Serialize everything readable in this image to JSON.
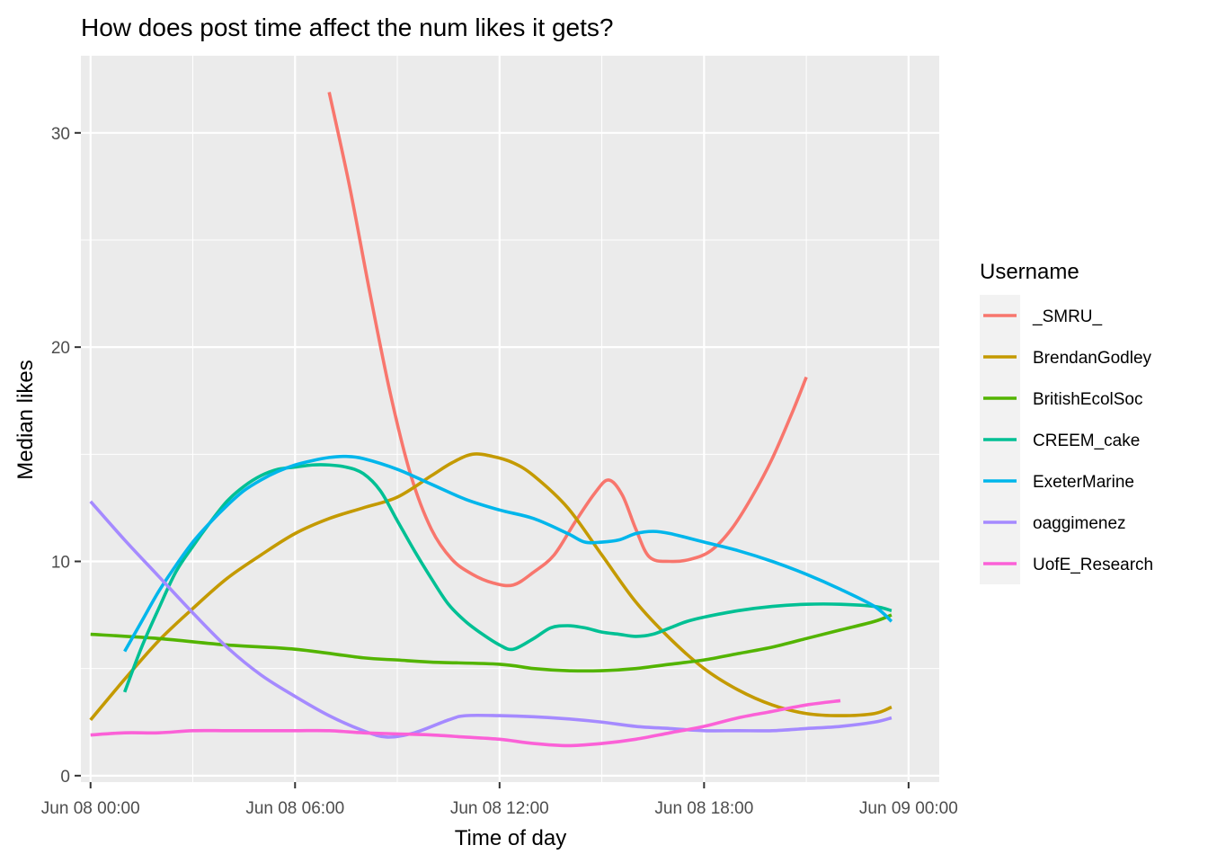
{
  "chart_data": {
    "type": "line",
    "title": "How does post time affect the num likes it gets?",
    "xlabel": "Time of day",
    "ylabel": "Median likes",
    "x_unit": "hours",
    "xlim": [
      "Jun 07 23:43",
      "Jun 09 00:54"
    ],
    "ylim": [
      -0.3,
      33.6
    ],
    "x_ticks": [
      {
        "value": "Jun 08 00:00",
        "label": "Jun 08 00:00"
      },
      {
        "value": "Jun 08 06:00",
        "label": "Jun 08 06:00"
      },
      {
        "value": "Jun 08 12:00",
        "label": "Jun 08 12:00"
      },
      {
        "value": "Jun 08 18:00",
        "label": "Jun 08 18:00"
      },
      {
        "value": "Jun 09 00:00",
        "label": "Jun 09 00:00"
      }
    ],
    "y_ticks": [
      0,
      10,
      20,
      30
    ],
    "grid": true,
    "legend": {
      "title": "Username",
      "position": "right"
    },
    "series": [
      {
        "name": "_SMRU_",
        "color": "#F8766D",
        "points": [
          [
            "Jun 08 07:00",
            31.9
          ],
          [
            "Jun 08 07:36",
            27.5
          ],
          [
            "Jun 08 08:12",
            22.5
          ],
          [
            "Jun 08 08:48",
            17.8
          ],
          [
            "Jun 08 09:24",
            14.0
          ],
          [
            "Jun 08 10:00",
            11.5
          ],
          [
            "Jun 08 10:36",
            10.1
          ],
          [
            "Jun 08 11:12",
            9.4
          ],
          [
            "Jun 08 11:48",
            9.0
          ],
          [
            "Jun 08 12:24",
            8.9
          ],
          [
            "Jun 08 13:00",
            9.5
          ],
          [
            "Jun 08 13:36",
            10.3
          ],
          [
            "Jun 08 14:12",
            11.8
          ],
          [
            "Jun 08 14:48",
            13.2
          ],
          [
            "Jun 08 15:12",
            13.8
          ],
          [
            "Jun 08 15:36",
            13.1
          ],
          [
            "Jun 08 16:00",
            11.5
          ],
          [
            "Jun 08 16:24",
            10.2
          ],
          [
            "Jun 08 17:00",
            10.0
          ],
          [
            "Jun 08 17:36",
            10.1
          ],
          [
            "Jun 08 18:12",
            10.5
          ],
          [
            "Jun 08 18:48",
            11.5
          ],
          [
            "Jun 08 19:24",
            13.0
          ],
          [
            "Jun 08 20:00",
            14.8
          ],
          [
            "Jun 08 20:36",
            17.0
          ],
          [
            "Jun 08 21:00",
            18.6
          ]
        ]
      },
      {
        "name": "BrendanGodley",
        "color": "#C49A00",
        "points": [
          [
            "Jun 08 00:00",
            2.6
          ],
          [
            "Jun 08 01:00",
            4.5
          ],
          [
            "Jun 08 02:00",
            6.3
          ],
          [
            "Jun 08 03:00",
            7.8
          ],
          [
            "Jun 08 04:00",
            9.2
          ],
          [
            "Jun 08 05:00",
            10.3
          ],
          [
            "Jun 08 06:00",
            11.3
          ],
          [
            "Jun 08 07:00",
            12.0
          ],
          [
            "Jun 08 08:00",
            12.5
          ],
          [
            "Jun 08 09:00",
            13.0
          ],
          [
            "Jun 08 10:00",
            14.0
          ],
          [
            "Jun 08 10:36",
            14.6
          ],
          [
            "Jun 08 11:12",
            15.0
          ],
          [
            "Jun 08 11:48",
            14.9
          ],
          [
            "Jun 08 12:24",
            14.6
          ],
          [
            "Jun 08 13:00",
            14.0
          ],
          [
            "Jun 08 14:00",
            12.5
          ],
          [
            "Jun 08 15:00",
            10.3
          ],
          [
            "Jun 08 16:00",
            8.1
          ],
          [
            "Jun 08 17:00",
            6.4
          ],
          [
            "Jun 08 18:00",
            5.0
          ],
          [
            "Jun 08 19:00",
            4.0
          ],
          [
            "Jun 08 20:00",
            3.3
          ],
          [
            "Jun 08 21:00",
            2.9
          ],
          [
            "Jun 08 22:00",
            2.8
          ],
          [
            "Jun 08 23:00",
            2.9
          ],
          [
            "Jun 08 23:30",
            3.2
          ]
        ]
      },
      {
        "name": "BritishEcolSoc",
        "color": "#53B400",
        "points": [
          [
            "Jun 08 00:00",
            6.6
          ],
          [
            "Jun 08 02:00",
            6.4
          ],
          [
            "Jun 08 04:00",
            6.1
          ],
          [
            "Jun 08 06:00",
            5.9
          ],
          [
            "Jun 08 08:00",
            5.5
          ],
          [
            "Jun 08 09:00",
            5.4
          ],
          [
            "Jun 08 10:00",
            5.3
          ],
          [
            "Jun 08 12:00",
            5.2
          ],
          [
            "Jun 08 13:00",
            5.0
          ],
          [
            "Jun 08 14:00",
            4.9
          ],
          [
            "Jun 08 15:00",
            4.9
          ],
          [
            "Jun 08 16:00",
            5.0
          ],
          [
            "Jun 08 17:00",
            5.2
          ],
          [
            "Jun 08 18:00",
            5.4
          ],
          [
            "Jun 08 19:00",
            5.7
          ],
          [
            "Jun 08 20:00",
            6.0
          ],
          [
            "Jun 08 21:00",
            6.4
          ],
          [
            "Jun 08 22:00",
            6.8
          ],
          [
            "Jun 08 23:00",
            7.2
          ],
          [
            "Jun 08 23:30",
            7.5
          ]
        ]
      },
      {
        "name": "CREEM_cake",
        "color": "#00C094",
        "points": [
          [
            "Jun 08 01:00",
            3.9
          ],
          [
            "Jun 08 01:30",
            6.0
          ],
          [
            "Jun 08 02:00",
            7.8
          ],
          [
            "Jun 08 02:30",
            9.5
          ],
          [
            "Jun 08 03:00",
            10.7
          ],
          [
            "Jun 08 03:30",
            11.8
          ],
          [
            "Jun 08 04:00",
            12.8
          ],
          [
            "Jun 08 04:30",
            13.5
          ],
          [
            "Jun 08 05:00",
            14.0
          ],
          [
            "Jun 08 05:30",
            14.3
          ],
          [
            "Jun 08 06:00",
            14.4
          ],
          [
            "Jun 08 06:30",
            14.5
          ],
          [
            "Jun 08 07:00",
            14.5
          ],
          [
            "Jun 08 07:30",
            14.4
          ],
          [
            "Jun 08 08:00",
            14.1
          ],
          [
            "Jun 08 08:30",
            13.3
          ],
          [
            "Jun 08 09:00",
            11.9
          ],
          [
            "Jun 08 09:30",
            10.5
          ],
          [
            "Jun 08 10:00",
            9.2
          ],
          [
            "Jun 08 10:30",
            8.0
          ],
          [
            "Jun 08 11:00",
            7.2
          ],
          [
            "Jun 08 11:30",
            6.6
          ],
          [
            "Jun 08 12:00",
            6.1
          ],
          [
            "Jun 08 12:24",
            5.9
          ],
          [
            "Jun 08 13:00",
            6.4
          ],
          [
            "Jun 08 13:30",
            6.9
          ],
          [
            "Jun 08 14:00",
            7.0
          ],
          [
            "Jun 08 14:30",
            6.9
          ],
          [
            "Jun 08 15:00",
            6.7
          ],
          [
            "Jun 08 15:30",
            6.6
          ],
          [
            "Jun 08 16:00",
            6.5
          ],
          [
            "Jun 08 16:30",
            6.6
          ],
          [
            "Jun 08 17:00",
            6.9
          ],
          [
            "Jun 08 17:30",
            7.2
          ],
          [
            "Jun 08 18:00",
            7.4
          ],
          [
            "Jun 08 19:00",
            7.7
          ],
          [
            "Jun 08 20:00",
            7.9
          ],
          [
            "Jun 08 21:00",
            8.0
          ],
          [
            "Jun 08 22:00",
            8.0
          ],
          [
            "Jun 08 23:00",
            7.9
          ],
          [
            "Jun 08 23:30",
            7.7
          ]
        ]
      },
      {
        "name": "ExeterMarine",
        "color": "#00B6EB",
        "points": [
          [
            "Jun 08 01:00",
            5.8
          ],
          [
            "Jun 08 01:30",
            7.2
          ],
          [
            "Jun 08 02:00",
            8.6
          ],
          [
            "Jun 08 02:30",
            9.8
          ],
          [
            "Jun 08 03:00",
            10.9
          ],
          [
            "Jun 08 03:30",
            11.8
          ],
          [
            "Jun 08 04:00",
            12.6
          ],
          [
            "Jun 08 04:30",
            13.3
          ],
          [
            "Jun 08 05:00",
            13.8
          ],
          [
            "Jun 08 05:30",
            14.2
          ],
          [
            "Jun 08 06:00",
            14.5
          ],
          [
            "Jun 08 06:30",
            14.7
          ],
          [
            "Jun 08 07:00",
            14.85
          ],
          [
            "Jun 08 07:30",
            14.9
          ],
          [
            "Jun 08 08:00",
            14.8
          ],
          [
            "Jun 08 09:00",
            14.3
          ],
          [
            "Jun 08 10:00",
            13.6
          ],
          [
            "Jun 08 11:00",
            12.9
          ],
          [
            "Jun 08 12:00",
            12.4
          ],
          [
            "Jun 08 13:00",
            12.0
          ],
          [
            "Jun 08 14:00",
            11.3
          ],
          [
            "Jun 08 14:30",
            10.9
          ],
          [
            "Jun 08 15:00",
            10.9
          ],
          [
            "Jun 08 15:30",
            11.0
          ],
          [
            "Jun 08 16:00",
            11.3
          ],
          [
            "Jun 08 16:30",
            11.4
          ],
          [
            "Jun 08 17:00",
            11.3
          ],
          [
            "Jun 08 18:00",
            10.9
          ],
          [
            "Jun 08 19:00",
            10.5
          ],
          [
            "Jun 08 20:00",
            10.0
          ],
          [
            "Jun 08 21:00",
            9.4
          ],
          [
            "Jun 08 22:00",
            8.7
          ],
          [
            "Jun 08 23:00",
            7.9
          ],
          [
            "Jun 08 23:30",
            7.2
          ]
        ]
      },
      {
        "name": "oaggimenez",
        "color": "#A58AFF",
        "points": [
          [
            "Jun 08 00:00",
            12.8
          ],
          [
            "Jun 08 01:00",
            11.0
          ],
          [
            "Jun 08 02:00",
            9.3
          ],
          [
            "Jun 08 03:00",
            7.6
          ],
          [
            "Jun 08 04:00",
            6.0
          ],
          [
            "Jun 08 05:00",
            4.7
          ],
          [
            "Jun 08 06:00",
            3.7
          ],
          [
            "Jun 08 07:00",
            2.8
          ],
          [
            "Jun 08 08:00",
            2.1
          ],
          [
            "Jun 08 08:42",
            1.8
          ],
          [
            "Jun 08 09:30",
            2.0
          ],
          [
            "Jun 08 10:30",
            2.6
          ],
          [
            "Jun 08 11:00",
            2.8
          ],
          [
            "Jun 08 12:00",
            2.8
          ],
          [
            "Jun 08 13:00",
            2.75
          ],
          [
            "Jun 08 14:00",
            2.65
          ],
          [
            "Jun 08 15:00",
            2.5
          ],
          [
            "Jun 08 16:00",
            2.3
          ],
          [
            "Jun 08 17:00",
            2.2
          ],
          [
            "Jun 08 18:00",
            2.1
          ],
          [
            "Jun 08 19:00",
            2.1
          ],
          [
            "Jun 08 20:00",
            2.1
          ],
          [
            "Jun 08 21:00",
            2.2
          ],
          [
            "Jun 08 22:00",
            2.3
          ],
          [
            "Jun 08 23:00",
            2.5
          ],
          [
            "Jun 08 23:30",
            2.7
          ]
        ]
      },
      {
        "name": "UofE_Research",
        "color": "#FB61D7",
        "points": [
          [
            "Jun 08 00:00",
            1.9
          ],
          [
            "Jun 08 01:00",
            2.0
          ],
          [
            "Jun 08 02:00",
            2.0
          ],
          [
            "Jun 08 03:00",
            2.1
          ],
          [
            "Jun 08 04:00",
            2.1
          ],
          [
            "Jun 08 05:00",
            2.1
          ],
          [
            "Jun 08 06:00",
            2.1
          ],
          [
            "Jun 08 07:00",
            2.1
          ],
          [
            "Jun 08 08:00",
            2.0
          ],
          [
            "Jun 08 09:00",
            1.95
          ],
          [
            "Jun 08 10:00",
            1.9
          ],
          [
            "Jun 08 11:00",
            1.8
          ],
          [
            "Jun 08 12:00",
            1.7
          ],
          [
            "Jun 08 13:00",
            1.5
          ],
          [
            "Jun 08 14:00",
            1.4
          ],
          [
            "Jun 08 15:00",
            1.5
          ],
          [
            "Jun 08 16:00",
            1.7
          ],
          [
            "Jun 08 17:00",
            2.0
          ],
          [
            "Jun 08 18:00",
            2.3
          ],
          [
            "Jun 08 19:00",
            2.7
          ],
          [
            "Jun 08 20:00",
            3.0
          ],
          [
            "Jun 08 21:00",
            3.3
          ],
          [
            "Jun 08 22:00",
            3.5
          ]
        ]
      }
    ]
  }
}
